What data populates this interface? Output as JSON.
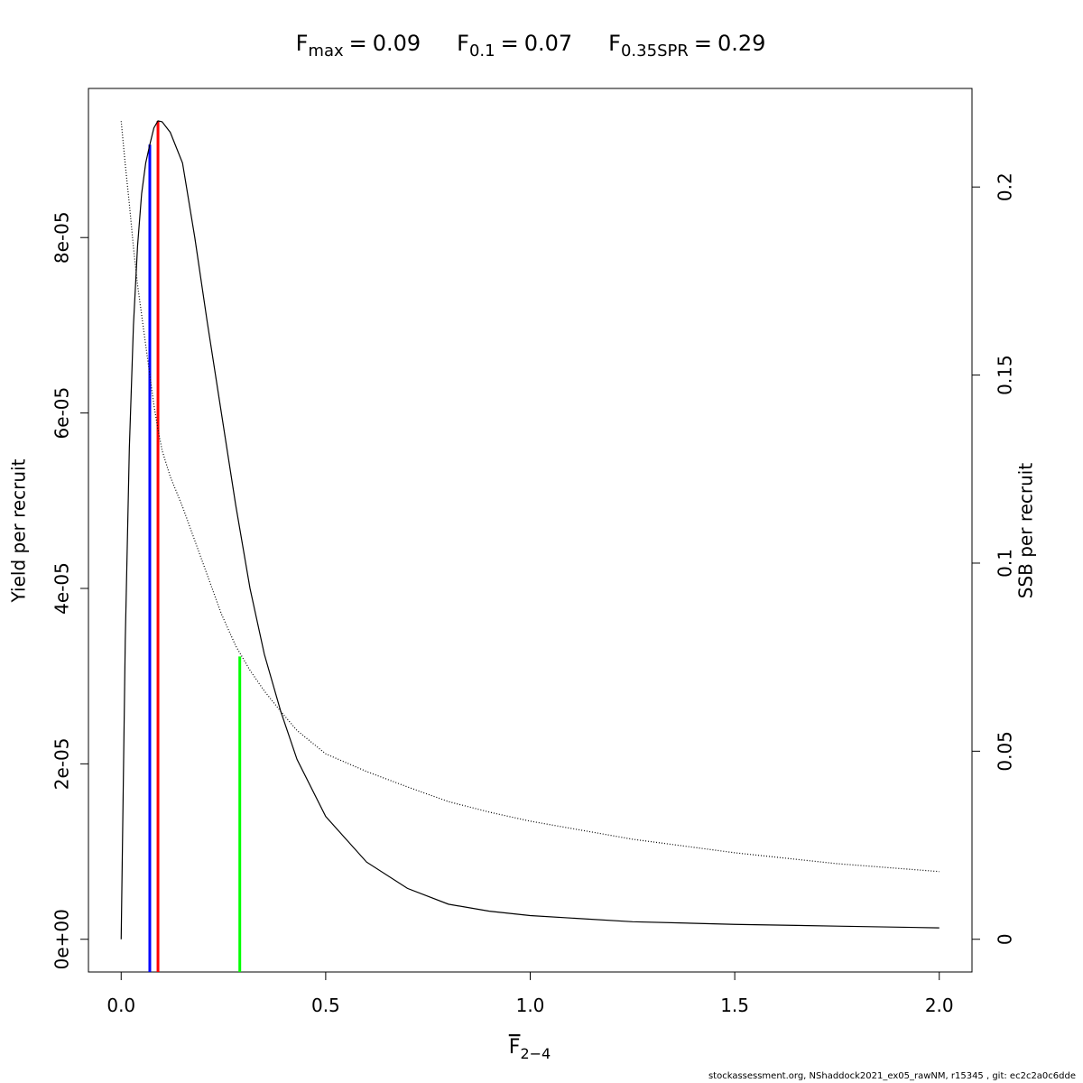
{
  "chart_data": {
    "type": "line",
    "title_parts": [
      {
        "symbol": "F",
        "subscript": "max",
        "operator": "=",
        "value": 0.09
      },
      {
        "symbol": "F",
        "subscript": "0.1",
        "operator": "=",
        "value": 0.07
      },
      {
        "symbol": "F",
        "subscript": "0.35SPR",
        "operator": "=",
        "value": 0.29
      }
    ],
    "xlabel": {
      "symbol": "F",
      "subscript": "2−4"
    },
    "ylabel": "Yield per recruit",
    "y2label": "SSB per recruit",
    "footer": "stockassessment.org, NShaddock2021_ex05_rawNM, r15345 , git: ec2c2a0c6dde",
    "x": [
      0,
      0.01,
      0.02,
      0.03,
      0.04,
      0.05,
      0.06,
      0.07,
      0.08,
      0.09,
      0.1,
      0.12,
      0.15,
      0.18,
      0.21,
      0.245,
      0.28,
      0.315,
      0.35,
      0.39,
      0.43,
      0.5,
      0.6,
      0.7,
      0.8,
      0.9,
      1.0,
      1.25,
      1.5,
      1.75,
      2.0
    ],
    "series": [
      {
        "name": "Yield per recruit",
        "color": "#000000",
        "style": "solid",
        "axis": "y",
        "values": [
          0,
          3.4e-05,
          5.6e-05,
          7e-05,
          7.9e-05,
          8.5e-05,
          8.85e-05,
          9.06e-05,
          9.25e-05,
          9.33e-05,
          9.32e-05,
          9.2e-05,
          8.85e-05,
          8e-05,
          7.05e-05,
          6e-05,
          4.95e-05,
          4e-05,
          3.25e-05,
          2.6e-05,
          2.05e-05,
          1.4e-05,
          8.8e-06,
          5.8e-06,
          4e-06,
          3.2e-06,
          2.7e-06,
          2e-06,
          1.7e-06,
          1.5e-06,
          1.3e-06
        ]
      },
      {
        "name": "SSB per recruit",
        "color": "#000000",
        "style": "dotted",
        "axis": "y2",
        "values": [
          0.2175,
          0.206,
          0.1955,
          0.184,
          0.174,
          0.166,
          0.158,
          0.15,
          0.142,
          0.1356,
          0.13,
          0.123,
          0.115,
          0.106,
          0.097,
          0.0865,
          0.078,
          0.0715,
          0.066,
          0.0606,
          0.0555,
          0.0493,
          0.0446,
          0.0405,
          0.0366,
          0.0338,
          0.0314,
          0.0266,
          0.023,
          0.0201,
          0.018
        ]
      }
    ],
    "reference_lines": [
      {
        "x": 0.07,
        "y": 9.06e-05,
        "axis": "y",
        "color": "#0000ff"
      },
      {
        "x": 0.09,
        "y": 9.33e-05,
        "axis": "y",
        "color": "#ff0000"
      },
      {
        "x": 0.29,
        "y": 0.0752,
        "axis": "y2",
        "color": "#00ff00"
      }
    ],
    "xlim": [
      -0.08,
      2.08
    ],
    "xticks": [
      {
        "value": 0,
        "label": "0.0"
      },
      0.5,
      {
        "value": 1,
        "label": "1.0"
      },
      1.5,
      {
        "value": 2,
        "label": "2.0"
      }
    ],
    "ylim": [
      -3.73e-06,
      9.7e-05
    ],
    "yticks": [
      {
        "value": 0,
        "label": "0e+00"
      },
      {
        "value": 2e-05,
        "label": "2e-05"
      },
      {
        "value": 4e-05,
        "label": "4e-05"
      },
      {
        "value": 6e-05,
        "label": "6e-05"
      },
      {
        "value": 8e-05,
        "label": "8e-05"
      }
    ],
    "y2lim": [
      -0.0087,
      0.2262
    ],
    "y2ticks": [
      0,
      0.05,
      0.1,
      0.15,
      0.2
    ],
    "grid": false
  }
}
